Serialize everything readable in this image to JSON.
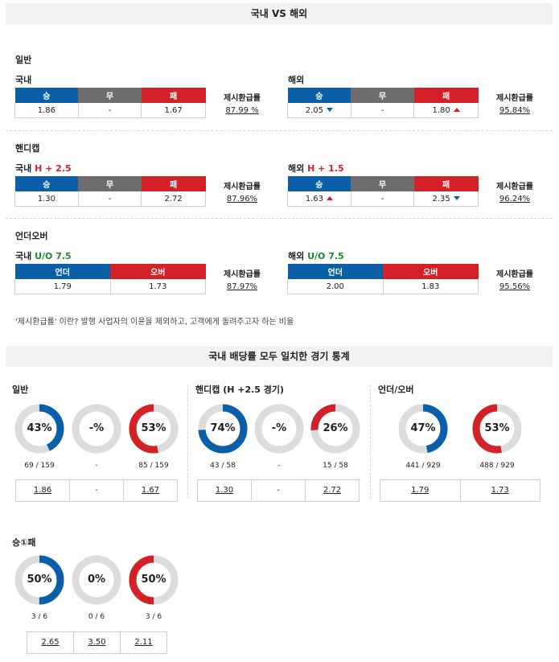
{
  "title": "국내 VS 해외",
  "sections": {
    "general": "일반",
    "handicap": "핸디캡",
    "overunder": "언더오버"
  },
  "labels": {
    "domestic": "국내",
    "overseas": "해외",
    "return_rate": "제시환급률"
  },
  "cols": {
    "win": "승",
    "draw": "무",
    "lose": "패",
    "under": "언더",
    "over": "오버"
  },
  "general": {
    "dom": {
      "win": "1.86",
      "draw": "-",
      "lose": "1.67",
      "rate": "87.99 %"
    },
    "ovs": {
      "win": "2.05",
      "draw": "-",
      "lose": "1.80",
      "rate": "95.84%"
    }
  },
  "handicap": {
    "dom": {
      "line": "H + 2.5",
      "win": "1.30",
      "draw": "-",
      "lose": "2.72",
      "rate": "87.96%"
    },
    "ovs": {
      "line": "H + 1.5",
      "win": "1.63",
      "draw": "-",
      "lose": "2.35",
      "rate": "96.24%"
    }
  },
  "overunder": {
    "dom": {
      "line": "U/O 7.5",
      "under": "1.79",
      "over": "1.73",
      "rate": "87.97%"
    },
    "ovs": {
      "line": "U/O 7.5",
      "under": "2.00",
      "over": "1.83",
      "rate": "95.56%"
    }
  },
  "note": "'제시환급률' 이란? 발행 사업자의 이윤을 제외하고, 고객에게 돌려주고자 하는 비율",
  "stats_title": "국내 배당률 모두 일치한 경기 통계",
  "stats": {
    "general": {
      "title": "일반",
      "donuts": [
        {
          "pct": 43,
          "text": "43%",
          "count": "69 / 159",
          "color": "#0b5ea8",
          "dir": "cw"
        },
        {
          "pct": 0,
          "text": "-%",
          "count": "-",
          "color": "#6d6d6d",
          "dir": "cw"
        },
        {
          "pct": 53,
          "text": "53%",
          "count": "85 / 159",
          "color": "#d42027",
          "dir": "ccw"
        }
      ],
      "odds": [
        "1.86",
        "-",
        "1.67"
      ]
    },
    "handicap": {
      "title": "핸디캡 (H +2.5 경기)",
      "donuts": [
        {
          "pct": 74,
          "text": "74%",
          "count": "43 / 58",
          "color": "#0b5ea8",
          "dir": "cw"
        },
        {
          "pct": 0,
          "text": "-%",
          "count": "-",
          "color": "#6d6d6d",
          "dir": "cw"
        },
        {
          "pct": 26,
          "text": "26%",
          "count": "15 / 58",
          "color": "#d42027",
          "dir": "ccw"
        }
      ],
      "odds": [
        "1.30",
        "-",
        "2.72"
      ]
    },
    "overunder": {
      "title": "언더/오버",
      "donuts": [
        {
          "pct": 47,
          "text": "47%",
          "count": "441 / 929",
          "color": "#0b5ea8",
          "dir": "cw"
        },
        {
          "pct": 53,
          "text": "53%",
          "count": "488 / 929",
          "color": "#d42027",
          "dir": "ccw"
        }
      ],
      "odds": [
        "1.79",
        "1.73"
      ]
    },
    "wdl": {
      "title": "승①패",
      "donuts": [
        {
          "pct": 50,
          "text": "50%",
          "count": "3 / 6",
          "color": "#0b5ea8",
          "dir": "cw"
        },
        {
          "pct": 0,
          "text": "0%",
          "count": "0 / 6",
          "color": "#6d6d6d",
          "dir": "cw"
        },
        {
          "pct": 50,
          "text": "50%",
          "count": "3 / 6",
          "color": "#d42027",
          "dir": "ccw"
        }
      ],
      "odds": [
        "2.65",
        "3.50",
        "2.11"
      ]
    }
  }
}
